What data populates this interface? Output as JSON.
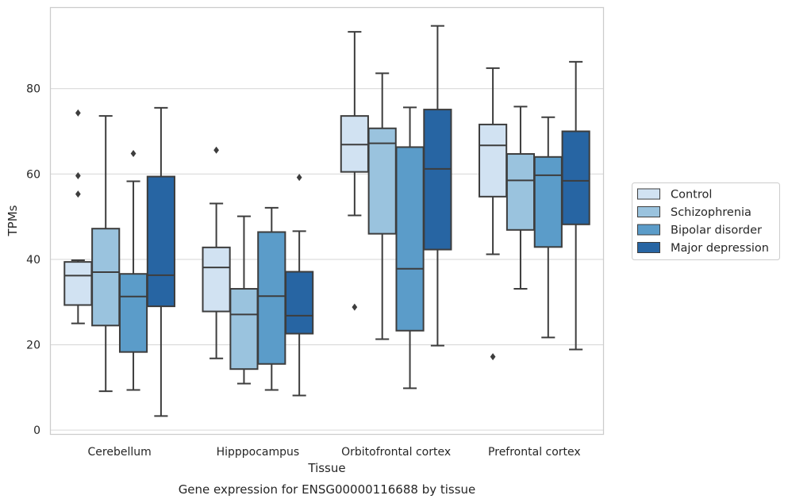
{
  "chart_data": {
    "type": "box",
    "title": "",
    "caption": "Gene expression for ENSG00000116688 by tissue",
    "xlabel": "Tissue",
    "ylabel": "TPMs",
    "ylim": [
      -1,
      99
    ],
    "yticks": [
      0,
      20,
      40,
      60,
      80
    ],
    "grid": "horizontal",
    "legend_position": "right",
    "categories": [
      "Cerebellum",
      "Hipppocampus",
      "Orbitofrontal cortex",
      "Prefrontal cortex"
    ],
    "series": [
      {
        "name": "Control",
        "color": "#d1e2f2",
        "boxes": [
          {
            "whisker_low": 25,
            "q1": 29.3,
            "median": 36.2,
            "q3": 39.4,
            "whisker_high": 39.8,
            "outliers": [
              74.3,
              59.6,
              55.3
            ]
          },
          {
            "whisker_low": 16.8,
            "q1": 27.8,
            "median": 38.1,
            "q3": 42.8,
            "whisker_high": 53.1,
            "outliers": [
              65.6
            ]
          },
          {
            "whisker_low": 50.3,
            "q1": 60.5,
            "median": 66.9,
            "q3": 73.6,
            "whisker_high": 93.3,
            "outliers": [
              28.8
            ]
          },
          {
            "whisker_low": 41.2,
            "q1": 54.7,
            "median": 66.7,
            "q3": 71.6,
            "whisker_high": 84.8,
            "outliers": [
              17.2
            ]
          }
        ]
      },
      {
        "name": "Schizophrenia",
        "color": "#9ac3de",
        "boxes": [
          {
            "whisker_low": 9.1,
            "q1": 24.5,
            "median": 37,
            "q3": 47.2,
            "whisker_high": 73.6,
            "outliers": []
          },
          {
            "whisker_low": 10.9,
            "q1": 14.3,
            "median": 27.1,
            "q3": 33.1,
            "whisker_high": 50.1,
            "outliers": []
          },
          {
            "whisker_low": 21.3,
            "q1": 46,
            "median": 67.2,
            "q3": 70.7,
            "whisker_high": 83.6,
            "outliers": []
          },
          {
            "whisker_low": 33.1,
            "q1": 46.9,
            "median": 58.5,
            "q3": 64.7,
            "whisker_high": 75.8,
            "outliers": []
          }
        ]
      },
      {
        "name": "Bipolar disorder",
        "color": "#5b9cc9",
        "boxes": [
          {
            "whisker_low": 9.4,
            "q1": 18.3,
            "median": 31.3,
            "q3": 36.6,
            "whisker_high": 58.3,
            "outliers": [
              64.8
            ]
          },
          {
            "whisker_low": 9.4,
            "q1": 15.5,
            "median": 31.4,
            "q3": 46.4,
            "whisker_high": 52.1,
            "outliers": []
          },
          {
            "whisker_low": 9.8,
            "q1": 23.3,
            "median": 37.8,
            "q3": 66.3,
            "whisker_high": 75.6,
            "outliers": []
          },
          {
            "whisker_low": 21.7,
            "q1": 42.9,
            "median": 59.7,
            "q3": 64,
            "whisker_high": 73.3,
            "outliers": []
          }
        ]
      },
      {
        "name": "Major depression",
        "color": "#2765a3",
        "boxes": [
          {
            "whisker_low": 3.3,
            "q1": 29,
            "median": 36.3,
            "q3": 59.4,
            "whisker_high": 75.5,
            "outliers": []
          },
          {
            "whisker_low": 8.1,
            "q1": 22.6,
            "median": 26.8,
            "q3": 37.1,
            "whisker_high": 46.6,
            "outliers": [
              59.2
            ]
          },
          {
            "whisker_low": 19.8,
            "q1": 42.3,
            "median": 61.2,
            "q3": 75.1,
            "whisker_high": 94.7,
            "outliers": []
          },
          {
            "whisker_low": 18.9,
            "q1": 48.2,
            "median": 58.4,
            "q3": 70,
            "whisker_high": 86.3,
            "outliers": []
          }
        ]
      }
    ]
  }
}
